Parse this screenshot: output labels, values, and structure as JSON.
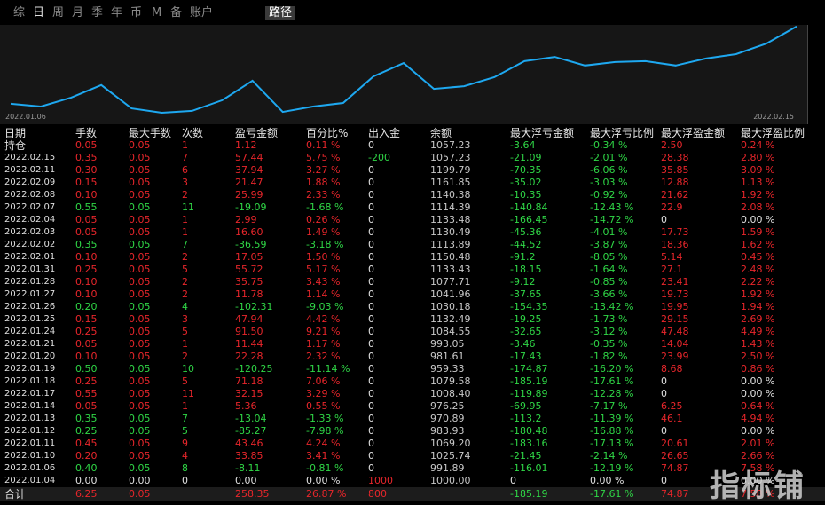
{
  "toolbar": {
    "tabs": [
      "综",
      "日",
      "周",
      "月",
      "季",
      "年",
      "币",
      "M",
      "备",
      "账户"
    ],
    "active": "日",
    "selected": "路径"
  },
  "chart_data": {
    "type": "line",
    "color": "#1ea8f0",
    "xlabels": [
      "2022.01.06",
      "2022.02.15"
    ],
    "ylim": [
      940,
      1300
    ],
    "values": [
      1009,
      999,
      1032,
      1078,
      992,
      976,
      983,
      1022,
      1094,
      979,
      999,
      1012,
      1110,
      1159,
      1064,
      1074,
      1107,
      1166,
      1182,
      1150,
      1163,
      1166,
      1150,
      1176,
      1192,
      1231,
      1294
    ]
  },
  "table": {
    "columns": [
      "日期",
      "手数",
      "最大手数",
      "次数",
      "盈亏金额",
      "百分比%",
      "出入金",
      "余额",
      "最大浮亏金额",
      "最大浮亏比例",
      "最大浮盈金额",
      "最大浮盈比例"
    ],
    "rows": [
      [
        "持仓",
        "0.05",
        "0.05",
        "1",
        "1.12",
        "0.11 %",
        "0",
        "1057.23",
        "-3.64",
        "-0.34 %",
        "2.50",
        "0.24 %"
      ],
      [
        "2022.02.15",
        "0.35",
        "0.05",
        "7",
        "57.44",
        "5.75 %",
        "-200",
        "1057.23",
        "-21.09",
        "-2.01 %",
        "28.38",
        "2.80 %"
      ],
      [
        "2022.02.11",
        "0.30",
        "0.05",
        "6",
        "37.94",
        "3.27 %",
        "0",
        "1199.79",
        "-70.35",
        "-6.06 %",
        "35.85",
        "3.09 %"
      ],
      [
        "2022.02.09",
        "0.15",
        "0.05",
        "3",
        "21.47",
        "1.88 %",
        "0",
        "1161.85",
        "-35.02",
        "-3.03 %",
        "12.88",
        "1.13 %"
      ],
      [
        "2022.02.08",
        "0.10",
        "0.05",
        "2",
        "25.99",
        "2.33 %",
        "0",
        "1140.38",
        "-10.35",
        "-0.92 %",
        "21.62",
        "1.92 %"
      ],
      [
        "2022.02.07",
        "0.55",
        "0.05",
        "11",
        "-19.09",
        "-1.68 %",
        "0",
        "1114.39",
        "-140.84",
        "-12.43 %",
        "22.9",
        "2.08 %"
      ],
      [
        "2022.02.04",
        "0.05",
        "0.05",
        "1",
        "2.99",
        "0.26 %",
        "0",
        "1133.48",
        "-166.45",
        "-14.72 %",
        "0",
        "0.00 %"
      ],
      [
        "2022.02.03",
        "0.05",
        "0.05",
        "1",
        "16.60",
        "1.49 %",
        "0",
        "1130.49",
        "-45.36",
        "-4.01 %",
        "17.73",
        "1.59 %"
      ],
      [
        "2022.02.02",
        "0.35",
        "0.05",
        "7",
        "-36.59",
        "-3.18 %",
        "0",
        "1113.89",
        "-44.52",
        "-3.87 %",
        "18.36",
        "1.62 %"
      ],
      [
        "2022.02.01",
        "0.10",
        "0.05",
        "2",
        "17.05",
        "1.50 %",
        "0",
        "1150.48",
        "-91.2",
        "-8.05 %",
        "5.14",
        "0.45 %"
      ],
      [
        "2022.01.31",
        "0.25",
        "0.05",
        "5",
        "55.72",
        "5.17 %",
        "0",
        "1133.43",
        "-18.15",
        "-1.64 %",
        "27.1",
        "2.48 %"
      ],
      [
        "2022.01.28",
        "0.10",
        "0.05",
        "2",
        "35.75",
        "3.43 %",
        "0",
        "1077.71",
        "-9.12",
        "-0.85 %",
        "23.41",
        "2.22 %"
      ],
      [
        "2022.01.27",
        "0.10",
        "0.05",
        "2",
        "11.78",
        "1.14 %",
        "0",
        "1041.96",
        "-37.65",
        "-3.66 %",
        "19.73",
        "1.92 %"
      ],
      [
        "2022.01.26",
        "0.20",
        "0.05",
        "4",
        "-102.31",
        "-9.03 %",
        "0",
        "1030.18",
        "-154.35",
        "-13.42 %",
        "19.95",
        "1.94 %"
      ],
      [
        "2022.01.25",
        "0.15",
        "0.05",
        "3",
        "47.94",
        "4.42 %",
        "0",
        "1132.49",
        "-19.25",
        "-1.73 %",
        "29.15",
        "2.69 %"
      ],
      [
        "2022.01.24",
        "0.25",
        "0.05",
        "5",
        "91.50",
        "9.21 %",
        "0",
        "1084.55",
        "-32.65",
        "-3.12 %",
        "47.48",
        "4.49 %"
      ],
      [
        "2022.01.21",
        "0.05",
        "0.05",
        "1",
        "11.44",
        "1.17 %",
        "0",
        "993.05",
        "-3.46",
        "-0.35 %",
        "14.04",
        "1.43 %"
      ],
      [
        "2022.01.20",
        "0.10",
        "0.05",
        "2",
        "22.28",
        "2.32 %",
        "0",
        "981.61",
        "-17.43",
        "-1.82 %",
        "23.99",
        "2.50 %"
      ],
      [
        "2022.01.19",
        "0.50",
        "0.05",
        "10",
        "-120.25",
        "-11.14 %",
        "0",
        "959.33",
        "-174.87",
        "-16.20 %",
        "8.68",
        "0.86 %"
      ],
      [
        "2022.01.18",
        "0.25",
        "0.05",
        "5",
        "71.18",
        "7.06 %",
        "0",
        "1079.58",
        "-185.19",
        "-17.61 %",
        "0",
        "0.00 %"
      ],
      [
        "2022.01.17",
        "0.55",
        "0.05",
        "11",
        "32.15",
        "3.29 %",
        "0",
        "1008.40",
        "-119.89",
        "-12.28 %",
        "0",
        "0.00 %"
      ],
      [
        "2022.01.14",
        "0.05",
        "0.05",
        "1",
        "5.36",
        "0.55 %",
        "0",
        "976.25",
        "-69.95",
        "-7.17 %",
        "6.25",
        "0.64 %"
      ],
      [
        "2022.01.13",
        "0.35",
        "0.05",
        "7",
        "-13.04",
        "-1.33 %",
        "0",
        "970.89",
        "-113.2",
        "-11.39 %",
        "46.1",
        "4.94 %"
      ],
      [
        "2022.01.12",
        "0.25",
        "0.05",
        "5",
        "-85.27",
        "-7.98 %",
        "0",
        "983.93",
        "-180.48",
        "-16.88 %",
        "0",
        "0.00 %"
      ],
      [
        "2022.01.11",
        "0.45",
        "0.05",
        "9",
        "43.46",
        "4.24 %",
        "0",
        "1069.20",
        "-183.16",
        "-17.13 %",
        "20.61",
        "2.01 %"
      ],
      [
        "2022.01.10",
        "0.20",
        "0.05",
        "4",
        "33.85",
        "3.41 %",
        "0",
        "1025.74",
        "-21.45",
        "-2.14 %",
        "26.65",
        "2.66 %"
      ],
      [
        "2022.01.06",
        "0.40",
        "0.05",
        "8",
        "-8.11",
        "-0.81 %",
        "0",
        "991.89",
        "-116.01",
        "-12.19 %",
        "74.87",
        "7.58 %"
      ],
      [
        "2022.01.04",
        "0.00",
        "0.00",
        "0",
        "0.00",
        "0.00 %",
        "1000",
        "1000.00",
        "0",
        "0.00 %",
        "0",
        "0.00 %"
      ]
    ],
    "total": [
      "合计",
      "6.25",
      "0.05",
      null,
      "258.35",
      "26.87 %",
      "800",
      null,
      "-185.19",
      "-17.61 %",
      "74.87",
      "7.58 %"
    ]
  },
  "watermark": "指标铺"
}
